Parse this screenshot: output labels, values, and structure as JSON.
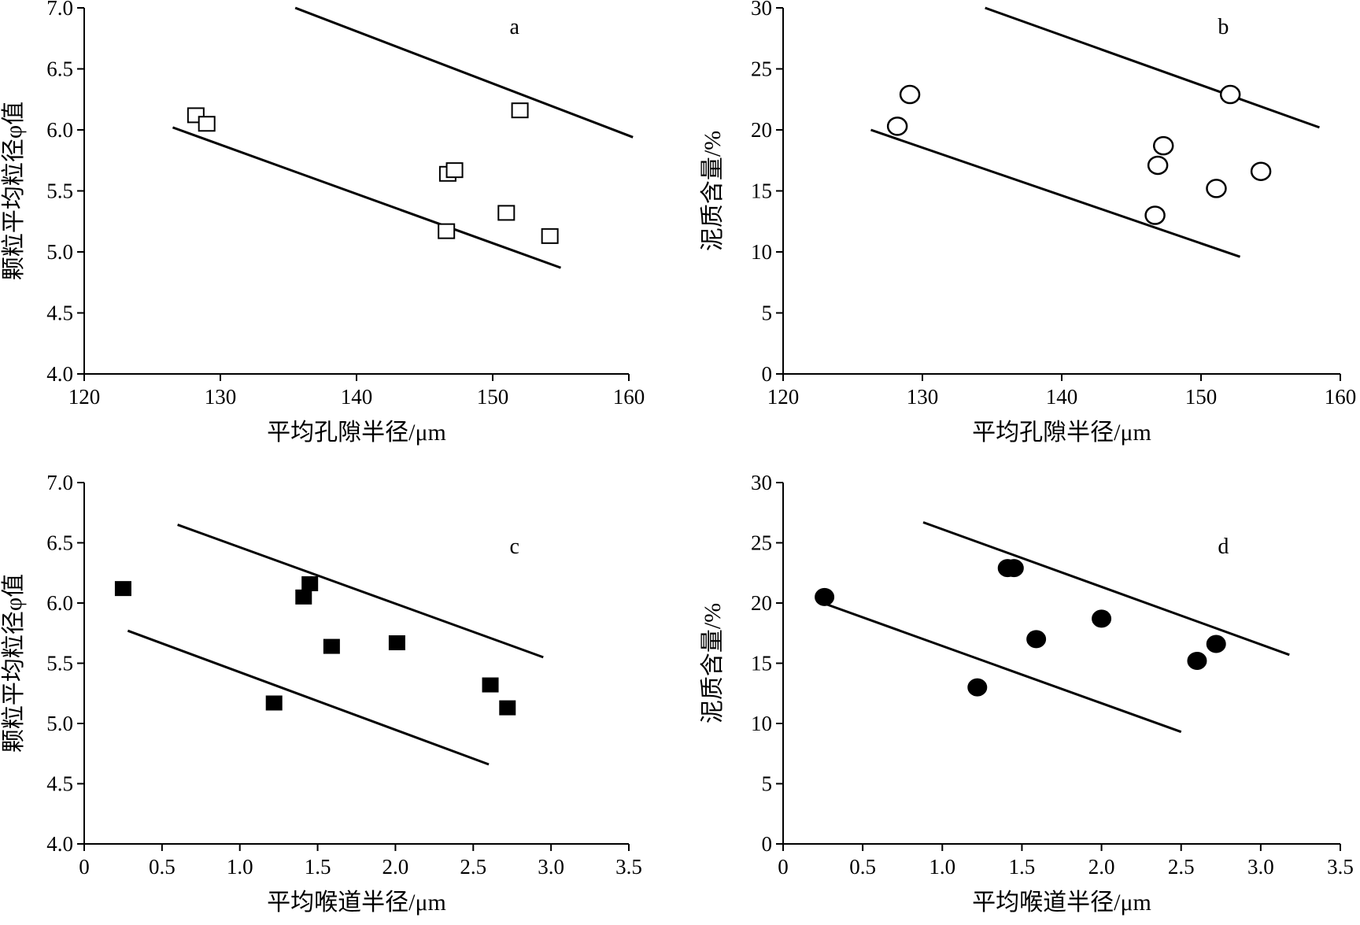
{
  "chart_data": [
    {
      "panel": "a",
      "type": "scatter",
      "xlabel": "平均孔隙半径/μm",
      "ylabel": "颗粒平均粒径φ值",
      "xlim": [
        120,
        160
      ],
      "ylim": [
        4.0,
        7.0
      ],
      "x_ticks": [
        120,
        130,
        140,
        150,
        160
      ],
      "x_tick_labels": [
        "120",
        "130",
        "140",
        "150",
        "160"
      ],
      "y_ticks": [
        4.0,
        4.5,
        5.0,
        5.5,
        6.0,
        6.5,
        7.0
      ],
      "y_tick_labels": [
        "4.0",
        "4.5",
        "5.0",
        "5.5",
        "6.0",
        "6.5",
        "7.0"
      ],
      "marker": "hollow-square",
      "points": [
        {
          "x": 128.2,
          "y": 6.12
        },
        {
          "x": 129.0,
          "y": 6.05
        },
        {
          "x": 152.0,
          "y": 6.16
        },
        {
          "x": 146.7,
          "y": 5.64
        },
        {
          "x": 147.2,
          "y": 5.67
        },
        {
          "x": 151.0,
          "y": 5.32
        },
        {
          "x": 146.6,
          "y": 5.17
        },
        {
          "x": 154.2,
          "y": 5.13
        }
      ],
      "envelope_lines": [
        {
          "x1": 135.5,
          "y1": 7.0,
          "x2": 160.3,
          "y2": 5.94
        },
        {
          "x1": 126.5,
          "y1": 6.02,
          "x2": 155.0,
          "y2": 4.87
        }
      ]
    },
    {
      "panel": "b",
      "type": "scatter",
      "xlabel": "平均孔隙半径/μm",
      "ylabel": "泥质含量/%",
      "xlim": [
        120,
        160
      ],
      "ylim": [
        0,
        30
      ],
      "x_ticks": [
        120,
        130,
        140,
        150,
        160
      ],
      "x_tick_labels": [
        "120",
        "130",
        "140",
        "150",
        "160"
      ],
      "y_ticks": [
        0,
        5,
        10,
        15,
        20,
        25,
        30
      ],
      "y_tick_labels": [
        "0",
        "5",
        "10",
        "15",
        "20",
        "25",
        "30"
      ],
      "marker": "hollow-circle",
      "points": [
        {
          "x": 128.2,
          "y": 20.3
        },
        {
          "x": 129.1,
          "y": 22.9
        },
        {
          "x": 152.1,
          "y": 22.9
        },
        {
          "x": 147.3,
          "y": 18.7
        },
        {
          "x": 146.9,
          "y": 17.1
        },
        {
          "x": 154.3,
          "y": 16.6
        },
        {
          "x": 151.1,
          "y": 15.2
        },
        {
          "x": 146.7,
          "y": 13.0
        }
      ],
      "envelope_lines": [
        {
          "x1": 134.5,
          "y1": 30.0,
          "x2": 158.5,
          "y2": 20.2
        },
        {
          "x1": 126.3,
          "y1": 20.0,
          "x2": 152.8,
          "y2": 9.6
        }
      ]
    },
    {
      "panel": "c",
      "type": "scatter",
      "xlabel": "平均喉道半径/μm",
      "ylabel": "颗粒平均粒径φ值",
      "xlim": [
        0,
        3.5
      ],
      "ylim": [
        4.0,
        7.0
      ],
      "x_ticks": [
        0,
        0.5,
        1.0,
        1.5,
        2.0,
        2.5,
        3.0,
        3.5
      ],
      "x_tick_labels": [
        "0",
        "0.5",
        "1.0",
        "1.5",
        "2.0",
        "2.5",
        "3.0",
        "3.5"
      ],
      "y_ticks": [
        4.0,
        4.5,
        5.0,
        5.5,
        6.0,
        6.5,
        7.0
      ],
      "y_tick_labels": [
        "4.0",
        "4.5",
        "5.0",
        "5.5",
        "6.0",
        "6.5",
        "7.0"
      ],
      "marker": "filled-square",
      "points": [
        {
          "x": 0.25,
          "y": 6.12
        },
        {
          "x": 1.45,
          "y": 6.16
        },
        {
          "x": 1.41,
          "y": 6.05
        },
        {
          "x": 1.59,
          "y": 5.64
        },
        {
          "x": 2.01,
          "y": 5.67
        },
        {
          "x": 2.61,
          "y": 5.32
        },
        {
          "x": 2.72,
          "y": 5.13
        },
        {
          "x": 1.22,
          "y": 5.17
        }
      ],
      "envelope_lines": [
        {
          "x1": 0.6,
          "y1": 6.65,
          "x2": 2.95,
          "y2": 5.55
        },
        {
          "x1": 0.28,
          "y1": 5.77,
          "x2": 2.6,
          "y2": 4.66
        }
      ]
    },
    {
      "panel": "d",
      "type": "scatter",
      "xlabel": "平均喉道半径/μm",
      "ylabel": "泥质含量/%",
      "xlim": [
        0,
        3.5
      ],
      "ylim": [
        0,
        30
      ],
      "x_ticks": [
        0,
        0.5,
        1.0,
        1.5,
        2.0,
        2.5,
        3.0,
        3.5
      ],
      "x_tick_labels": [
        "0",
        "0.5",
        "1.0",
        "1.5",
        "2.0",
        "2.5",
        "3.0",
        "3.5"
      ],
      "y_ticks": [
        0,
        5,
        10,
        15,
        20,
        25,
        30
      ],
      "y_tick_labels": [
        "0",
        "5",
        "10",
        "15",
        "20",
        "25",
        "30"
      ],
      "marker": "filled-circle",
      "points": [
        {
          "x": 0.26,
          "y": 20.5
        },
        {
          "x": 1.41,
          "y": 22.9
        },
        {
          "x": 1.45,
          "y": 22.9
        },
        {
          "x": 2.0,
          "y": 18.7
        },
        {
          "x": 1.59,
          "y": 17.0
        },
        {
          "x": 2.72,
          "y": 16.6
        },
        {
          "x": 2.6,
          "y": 15.2
        },
        {
          "x": 1.22,
          "y": 13.0
        }
      ],
      "envelope_lines": [
        {
          "x1": 0.88,
          "y1": 26.7,
          "x2": 3.18,
          "y2": 15.7
        },
        {
          "x1": 0.25,
          "y1": 20.0,
          "x2": 2.5,
          "y2": 9.3
        }
      ]
    }
  ]
}
